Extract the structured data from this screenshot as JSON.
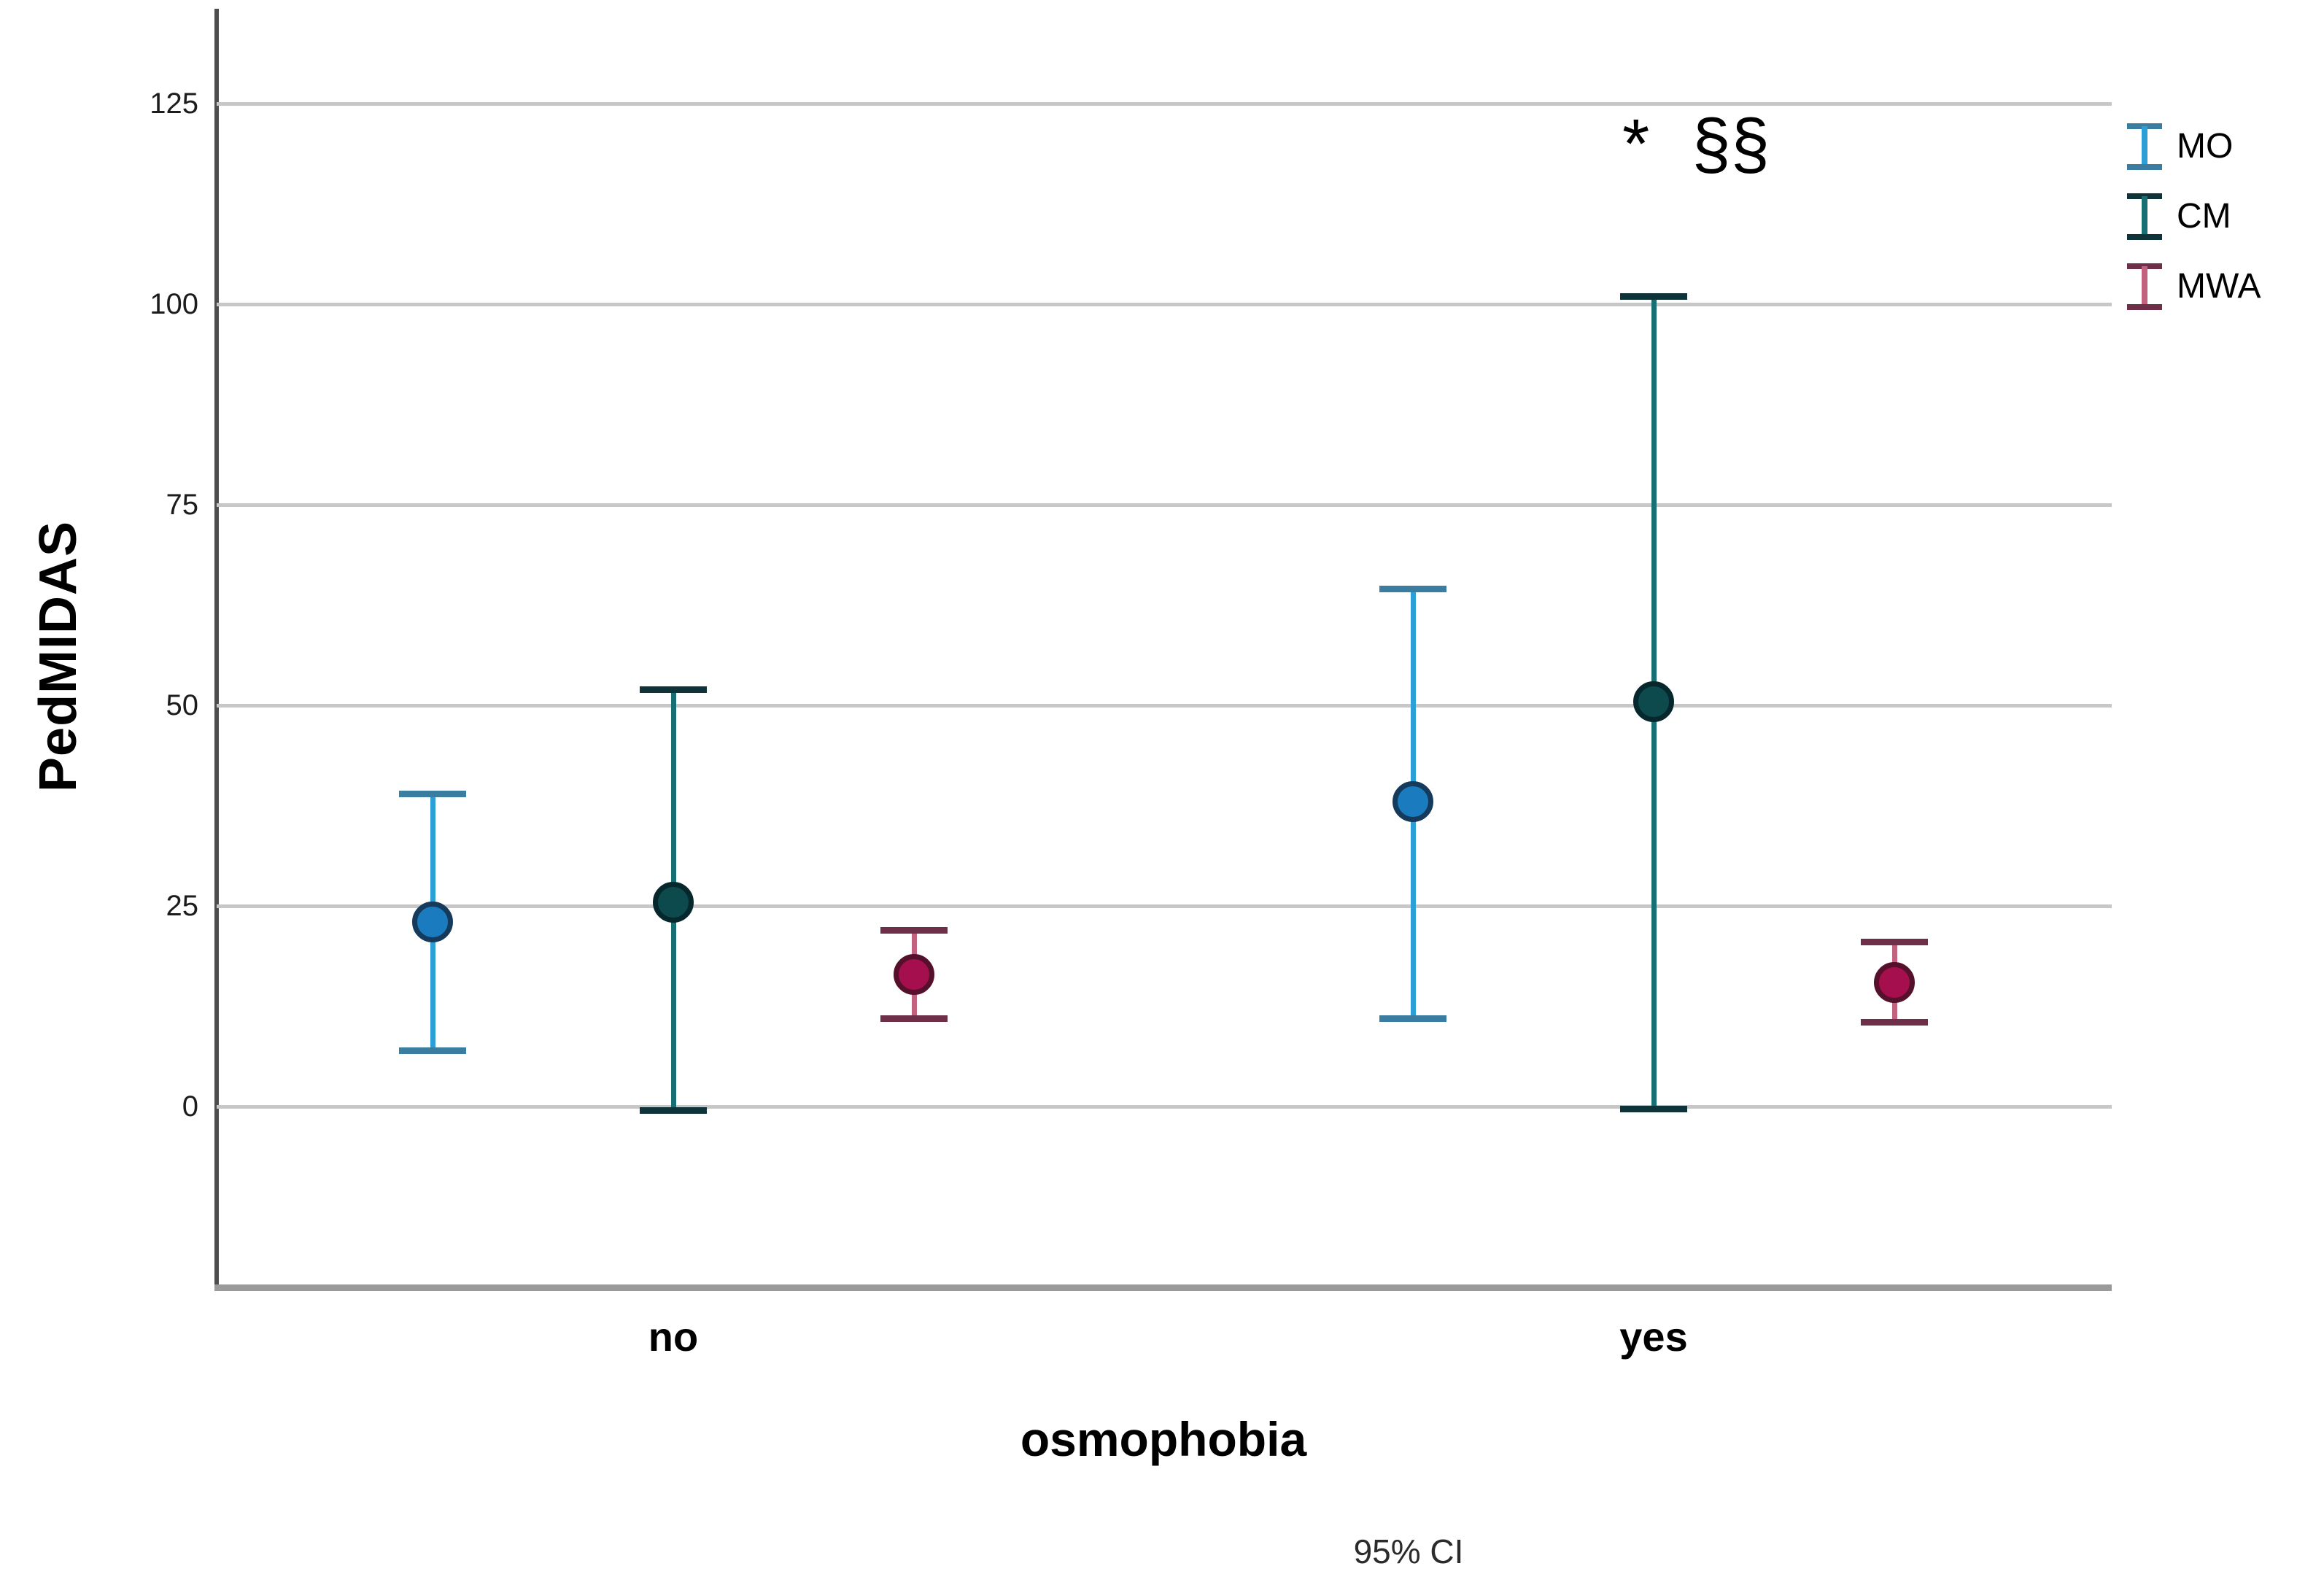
{
  "chart_data": {
    "type": "errorbar",
    "title": "",
    "xlabel": "osmophobia",
    "ylabel": "PedMIDAS",
    "caption": "95% CI",
    "categories": [
      "no",
      "yes"
    ],
    "yticks": [
      0,
      25,
      50,
      75,
      100,
      125
    ],
    "ylim": [
      -22.5,
      135.2
    ],
    "grid": "horizontal-only",
    "legend_position": "top-right-outside",
    "annotation": {
      "star": "*",
      "sections": "§§"
    },
    "colors": {
      "gridline": "#c7c7c7",
      "y_axis": "#4d4d4d",
      "x_axis": "#9a9a9a"
    },
    "series": [
      {
        "name": "MO",
        "color": "#2b9fd6",
        "cap_color": "#3a7da0",
        "dot_color": "#1a7cbe",
        "dot_edge": "#153a5c",
        "points": [
          {
            "category": "no",
            "mean": 23,
            "ci_low": 7,
            "ci_high": 39
          },
          {
            "category": "yes",
            "mean": 38,
            "ci_low": 11,
            "ci_high": 64.5
          }
        ]
      },
      {
        "name": "CM",
        "color": "#176f73",
        "cap_color": "#0e343a",
        "dot_color": "#0d4a4e",
        "dot_edge": "#06272b",
        "points": [
          {
            "category": "no",
            "mean": 25.5,
            "ci_low": -0.5,
            "ci_high": 52
          },
          {
            "category": "yes",
            "mean": 50.5,
            "ci_low": -0.3,
            "ci_high": 101
          }
        ]
      },
      {
        "name": "MWA",
        "color": "#c2627f",
        "cap_color": "#6e3048",
        "dot_color": "#a50f4d",
        "dot_edge": "#55102c",
        "points": [
          {
            "category": "no",
            "mean": 16.5,
            "ci_low": 11,
            "ci_high": 22
          },
          {
            "category": "yes",
            "mean": 15.5,
            "ci_low": 10.5,
            "ci_high": 20.5
          }
        ]
      }
    ]
  }
}
